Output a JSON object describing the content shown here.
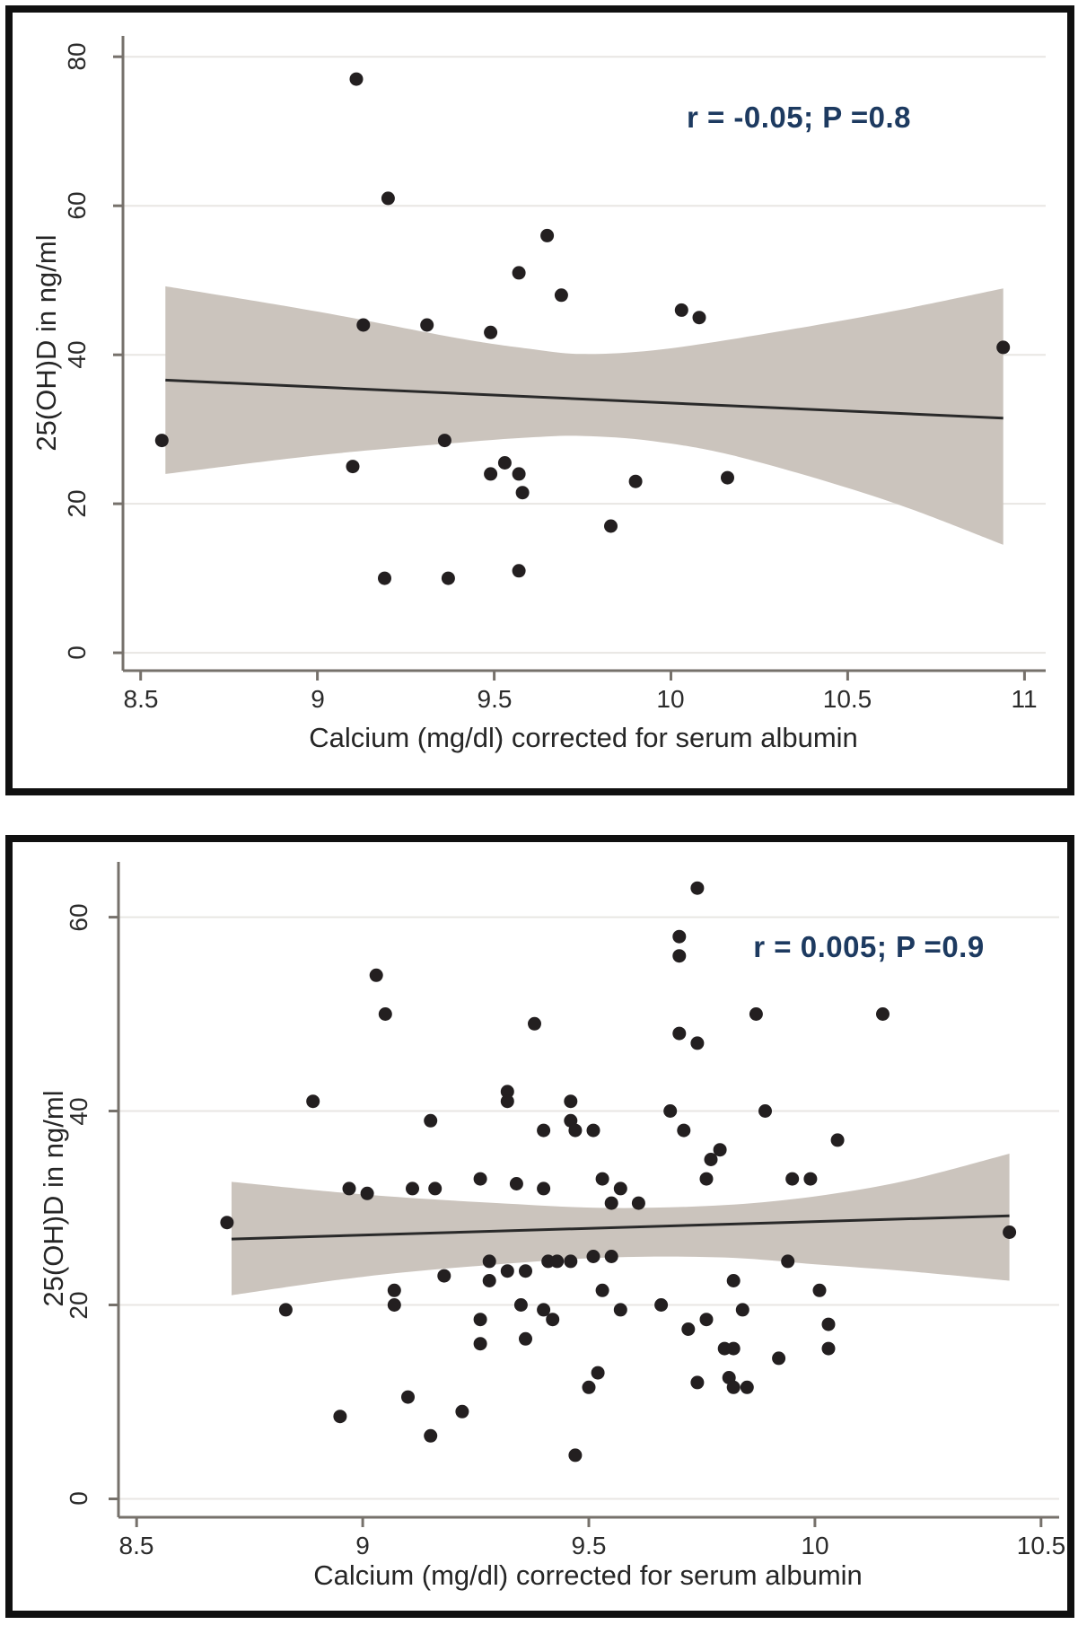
{
  "figure": {
    "background": "#ffffff",
    "frame_color": "#101010"
  },
  "chart_data": [
    {
      "type": "scatter",
      "title": "",
      "xlabel": "Calcium (mg/dl) corrected for serum albumin",
      "ylabel": "25(OH)D in ng/ml",
      "annotation": {
        "text": "r = -0.05; P =0.8",
        "color": "#1d3a60"
      },
      "x_ticks": [
        8.5,
        9,
        9.5,
        10,
        10.5,
        11
      ],
      "y_ticks": [
        0,
        20,
        40,
        60,
        80
      ],
      "x_range": [
        8.45,
        11.06
      ],
      "y_range": [
        -2.4,
        82.8
      ],
      "grid": "horizontal",
      "legend": "none",
      "points": [
        [
          8.56,
          28.5
        ],
        [
          9.1,
          25
        ],
        [
          9.11,
          77
        ],
        [
          9.13,
          44
        ],
        [
          9.19,
          10
        ],
        [
          9.2,
          61
        ],
        [
          9.31,
          44
        ],
        [
          9.36,
          28.5
        ],
        [
          9.37,
          10
        ],
        [
          9.49,
          43
        ],
        [
          9.49,
          24
        ],
        [
          9.53,
          25.5
        ],
        [
          9.57,
          51
        ],
        [
          9.57,
          24
        ],
        [
          9.57,
          11
        ],
        [
          9.58,
          21.5
        ],
        [
          9.65,
          56
        ],
        [
          9.69,
          48
        ],
        [
          9.83,
          17
        ],
        [
          9.9,
          23
        ],
        [
          10.03,
          46
        ],
        [
          10.08,
          45
        ],
        [
          10.16,
          23.5
        ],
        [
          10.94,
          41
        ]
      ],
      "fit_line": {
        "x1": 8.57,
        "y1": 36.6,
        "x2": 10.94,
        "y2": 31.5
      },
      "ci_band": {
        "x": [
          8.57,
          9.0,
          9.4,
          9.6,
          9.75,
          9.95,
          10.2,
          10.6,
          10.94
        ],
        "upper": [
          49.2,
          45.8,
          42.2,
          40.8,
          40.1,
          40.6,
          42.3,
          45.6,
          48.9
        ],
        "lower": [
          24.0,
          26.5,
          28.2,
          28.9,
          29.1,
          28.4,
          26.2,
          20.6,
          14.5
        ]
      },
      "colors": {
        "point": "#231f20",
        "band": "#cbc4bd",
        "line": "#2a2a2a",
        "grid": "#e8e6e3",
        "axis": "#76716b"
      }
    },
    {
      "type": "scatter",
      "title": "",
      "xlabel": "Calcium (mg/dl) corrected for serum albumin",
      "ylabel": "25(OH)D in ng/ml",
      "annotation": {
        "text": "r = 0.005; P =0.9",
        "color": "#1d3a60"
      },
      "x_ticks": [
        8.5,
        9,
        9.5,
        10,
        10.5
      ],
      "y_ticks": [
        0,
        20,
        40,
        60
      ],
      "x_range": [
        8.46,
        10.54
      ],
      "y_range": [
        -1.9,
        65.7
      ],
      "grid": "horizontal",
      "legend": "none",
      "points": [
        [
          9.03,
          54
        ],
        [
          9.05,
          50
        ],
        [
          9.38,
          49
        ],
        [
          8.89,
          41
        ],
        [
          9.15,
          39
        ],
        [
          9.32,
          42
        ],
        [
          9.32,
          41
        ],
        [
          9.74,
          63
        ],
        [
          9.7,
          58
        ],
        [
          9.7,
          56
        ],
        [
          9.87,
          50
        ],
        [
          10.15,
          50
        ],
        [
          9.7,
          48
        ],
        [
          9.74,
          47
        ],
        [
          9.46,
          41
        ],
        [
          9.68,
          40
        ],
        [
          9.89,
          40
        ],
        [
          9.46,
          39
        ],
        [
          9.4,
          38
        ],
        [
          8.7,
          28.5
        ],
        [
          8.97,
          32
        ],
        [
          9.01,
          31.5
        ],
        [
          9.11,
          32
        ],
        [
          9.16,
          32
        ],
        [
          9.26,
          33
        ],
        [
          9.34,
          32.5
        ],
        [
          9.4,
          32
        ],
        [
          8.83,
          19.5
        ],
        [
          9.07,
          21.5
        ],
        [
          9.07,
          20
        ],
        [
          9.18,
          23
        ],
        [
          9.28,
          24.5
        ],
        [
          9.28,
          22.5
        ],
        [
          9.32,
          23.5
        ],
        [
          9.36,
          23.5
        ],
        [
          9.41,
          24.5
        ],
        [
          9.43,
          24.5
        ],
        [
          9.26,
          18.5
        ],
        [
          9.26,
          16
        ],
        [
          9.35,
          20
        ],
        [
          9.4,
          19.5
        ],
        [
          9.42,
          18.5
        ],
        [
          9.36,
          16.5
        ],
        [
          8.95,
          8.5
        ],
        [
          9.1,
          10.5
        ],
        [
          9.22,
          9
        ],
        [
          9.15,
          6.5
        ],
        [
          9.47,
          38
        ],
        [
          9.51,
          38
        ],
        [
          9.71,
          38
        ],
        [
          10.05,
          37
        ],
        [
          9.79,
          36
        ],
        [
          9.77,
          35
        ],
        [
          9.76,
          33
        ],
        [
          9.53,
          33
        ],
        [
          9.57,
          32
        ],
        [
          9.95,
          33
        ],
        [
          9.99,
          33
        ],
        [
          9.55,
          30.5
        ],
        [
          9.61,
          30.5
        ],
        [
          9.46,
          24.5
        ],
        [
          9.51,
          25
        ],
        [
          9.55,
          25
        ],
        [
          9.94,
          24.5
        ],
        [
          9.82,
          22.5
        ],
        [
          10.01,
          21.5
        ],
        [
          9.53,
          21.5
        ],
        [
          9.66,
          20
        ],
        [
          9.57,
          19.5
        ],
        [
          9.84,
          19.5
        ],
        [
          10.03,
          18
        ],
        [
          9.72,
          17.5
        ],
        [
          9.76,
          18.5
        ],
        [
          9.8,
          15.5
        ],
        [
          9.82,
          15.5
        ],
        [
          9.92,
          14.5
        ],
        [
          10.03,
          15.5
        ],
        [
          9.52,
          13
        ],
        [
          9.5,
          11.5
        ],
        [
          9.74,
          12
        ],
        [
          9.81,
          12.5
        ],
        [
          9.82,
          11.5
        ],
        [
          9.85,
          11.5
        ],
        [
          9.47,
          4.5
        ],
        [
          10.43,
          27.5
        ]
      ],
      "fit_line": {
        "x1": 8.71,
        "y1": 26.8,
        "x2": 10.43,
        "y2": 29.2
      },
      "ci_band": {
        "x": [
          8.71,
          9.0,
          9.3,
          9.55,
          9.8,
          10.0,
          10.2,
          10.43
        ],
        "upper": [
          32.7,
          31.4,
          30.5,
          30.0,
          30.3,
          31.2,
          32.8,
          35.6
        ],
        "lower": [
          21.0,
          22.9,
          24.2,
          24.9,
          24.9,
          24.2,
          23.5,
          22.5
        ]
      },
      "colors": {
        "point": "#231f20",
        "band": "#cbc4bd",
        "line": "#2a2a2a",
        "grid": "#e8e6e3",
        "axis": "#76716b"
      }
    }
  ]
}
